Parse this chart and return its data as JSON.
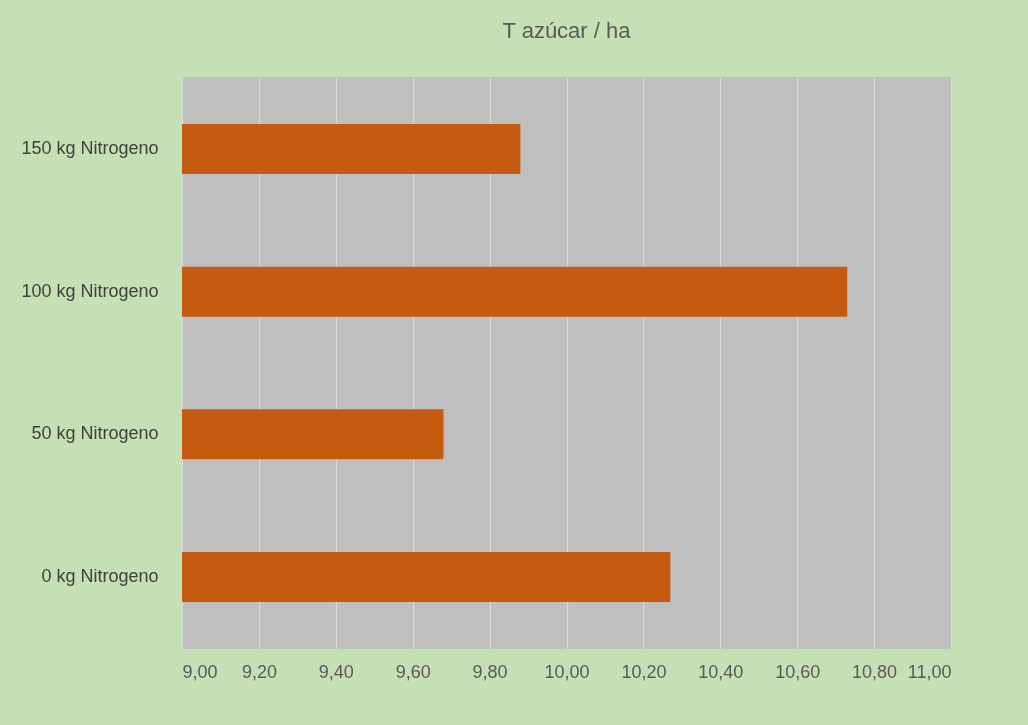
{
  "chart_data": {
    "type": "bar",
    "orientation": "horizontal",
    "title": "T azúcar / ha",
    "categories": [
      "150 kg Nitrogeno",
      "100 kg Nitrogeno",
      "50 kg Nitrogeno",
      "0 kg Nitrogeno"
    ],
    "values": [
      9.88,
      10.73,
      9.68,
      10.27
    ],
    "color": "#c55a11",
    "xlim": [
      9,
      11
    ],
    "xticks": [
      {
        "value": 9,
        "label": "9,00"
      },
      {
        "value": 9.2,
        "label": "9,20"
      },
      {
        "value": 9.4,
        "label": "9,40"
      },
      {
        "value": 9.6,
        "label": "9,60"
      },
      {
        "value": 9.8,
        "label": "9,80"
      },
      {
        "value": 10,
        "label": "10,00"
      },
      {
        "value": 10.2,
        "label": "10,20"
      },
      {
        "value": 10.4,
        "label": "10,40"
      },
      {
        "value": 10.6,
        "label": "10,60"
      },
      {
        "value": 10.8,
        "label": "10,80"
      },
      {
        "value": 11,
        "label": "11,00"
      }
    ],
    "grid": "x"
  }
}
